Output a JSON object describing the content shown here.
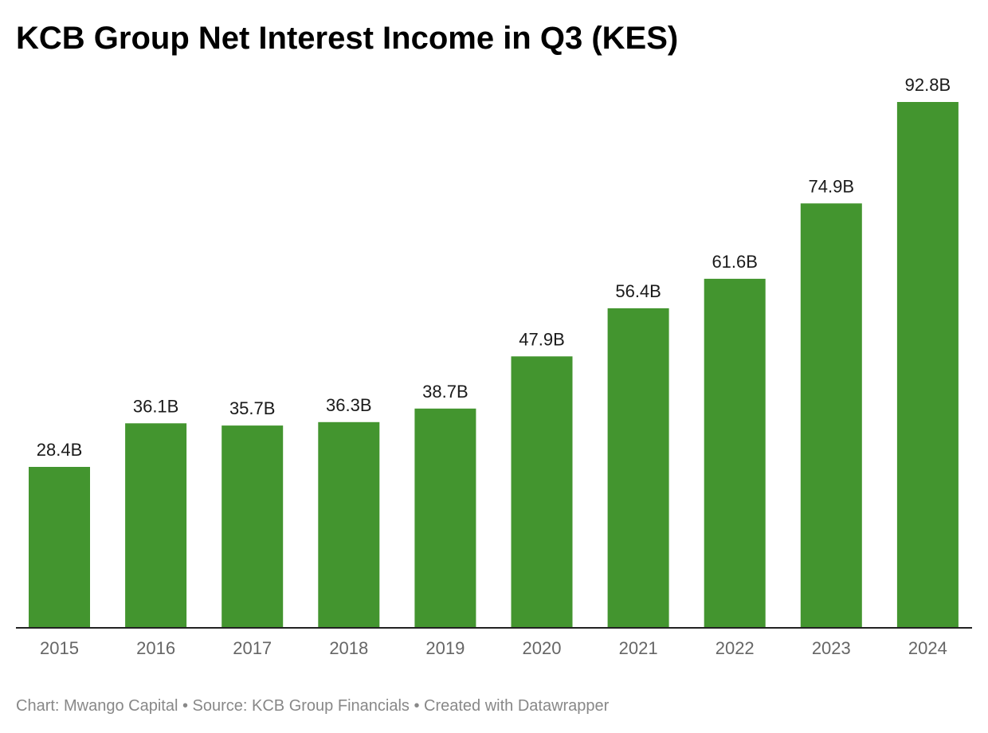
{
  "chart_data": {
    "type": "bar",
    "title": "KCB Group Net Interest Income in Q3 (KES)",
    "xlabel": "",
    "ylabel": "",
    "categories": [
      "2015",
      "2016",
      "2017",
      "2018",
      "2019",
      "2020",
      "2021",
      "2022",
      "2023",
      "2024"
    ],
    "values": [
      28.4,
      36.1,
      35.7,
      36.3,
      38.7,
      47.9,
      56.4,
      61.6,
      74.9,
      92.8
    ],
    "value_labels": [
      "28.4B",
      "36.1B",
      "35.7B",
      "36.3B",
      "38.7B",
      "47.9B",
      "56.4B",
      "61.6B",
      "74.9B",
      "92.8B"
    ],
    "unit": "B",
    "ylim": [
      0,
      92.8
    ],
    "grid": false,
    "legend": "none",
    "bar_color": "#43952f",
    "footer": "Chart: Mwango Capital • Source: KCB Group Financials • Created with Datawrapper"
  }
}
